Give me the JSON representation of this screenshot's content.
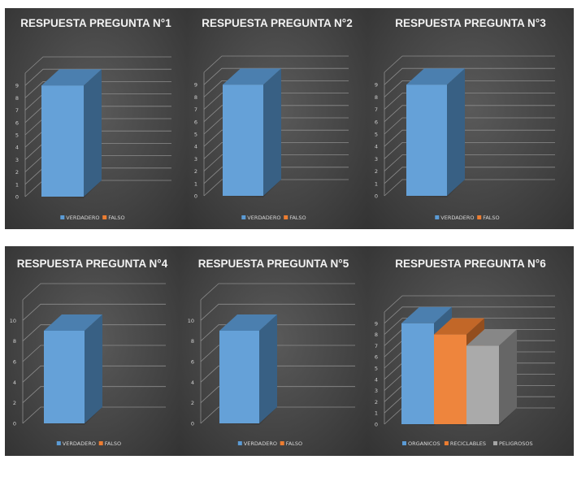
{
  "colors": {
    "verdadero": "#5b9bd5",
    "falso": "#ed7d31",
    "organicos": "#5b9bd5",
    "reciclables": "#ed7d31",
    "peligrosos": "#a5a5a5"
  },
  "chart_data": [
    {
      "type": "bar",
      "title": "RESPUESTA PREGUNTA N°1",
      "categories": [
        ""
      ],
      "series": [
        {
          "name": "VERDADERO",
          "values": [
            9
          ]
        },
        {
          "name": "FALSO",
          "values": [
            0
          ]
        }
      ],
      "yticks": [
        0,
        1,
        2,
        3,
        4,
        5,
        6,
        7,
        8,
        9
      ],
      "ylim": [
        0,
        10
      ],
      "grid": true,
      "legend": "bottom"
    },
    {
      "type": "bar",
      "title": "RESPUESTA PREGUNTA N°2",
      "categories": [
        ""
      ],
      "series": [
        {
          "name": "VERDADERO",
          "values": [
            9
          ]
        },
        {
          "name": "FALSO",
          "values": [
            0
          ]
        }
      ],
      "yticks": [
        0,
        1,
        2,
        3,
        4,
        5,
        6,
        7,
        8,
        9
      ],
      "ylim": [
        0,
        10
      ],
      "grid": true,
      "legend": "bottom"
    },
    {
      "type": "bar",
      "title": "RESPUESTA PREGUNTA N°3",
      "categories": [
        ""
      ],
      "series": [
        {
          "name": "VERDADERO",
          "values": [
            9
          ]
        },
        {
          "name": "FALSO",
          "values": [
            0
          ]
        }
      ],
      "yticks": [
        0,
        1,
        2,
        3,
        4,
        5,
        6,
        7,
        8,
        9
      ],
      "ylim": [
        0,
        10
      ],
      "grid": true,
      "legend": "bottom"
    },
    {
      "type": "bar",
      "title": "RESPUESTA PREGUNTA N°4",
      "categories": [
        ""
      ],
      "series": [
        {
          "name": "VERDADERO",
          "values": [
            9
          ]
        },
        {
          "name": "FALSO",
          "values": [
            0
          ]
        }
      ],
      "yticks": [
        0,
        2,
        4,
        6,
        8,
        10
      ],
      "ylim": [
        0,
        12
      ],
      "grid": true,
      "legend": "bottom"
    },
    {
      "type": "bar",
      "title": "RESPUESTA PREGUNTA N°5",
      "categories": [
        ""
      ],
      "series": [
        {
          "name": "VERDADERO",
          "values": [
            9
          ]
        },
        {
          "name": "FALSO",
          "values": [
            0
          ]
        }
      ],
      "yticks": [
        0,
        2,
        4,
        6,
        8,
        10
      ],
      "ylim": [
        0,
        12
      ],
      "grid": true,
      "legend": "bottom"
    },
    {
      "type": "bar",
      "title": "RESPUESTA PREGUNTA N°6",
      "categories": [
        ""
      ],
      "series": [
        {
          "name": "ORGANICOS",
          "values": [
            9
          ]
        },
        {
          "name": "RECICLABLES",
          "values": [
            8
          ]
        },
        {
          "name": "PELIGROSOS",
          "values": [
            7
          ]
        }
      ],
      "yticks": [
        0,
        1,
        2,
        3,
        4,
        5,
        6,
        7,
        8,
        9
      ],
      "ylim": [
        0,
        10
      ],
      "grid": true,
      "legend": "bottom"
    }
  ]
}
